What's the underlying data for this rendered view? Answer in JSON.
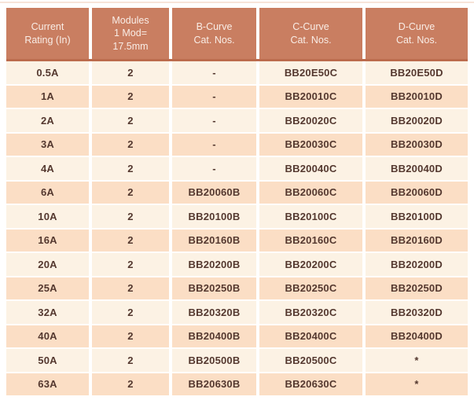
{
  "table": {
    "column_headers": [
      "Current\nRating (In)",
      "Modules\n1 Mod=\n17.5mm",
      "B-Curve\nCat. Nos.",
      "C-Curve\nCat. Nos.",
      "D-Curve\nCat. Nos."
    ],
    "rows": [
      [
        "0.5A",
        "2",
        "-",
        "BB20E50C",
        "BB20E50D"
      ],
      [
        "1A",
        "2",
        "-",
        "BB20010C",
        "BB20010D"
      ],
      [
        "2A",
        "2",
        "-",
        "BB20020C",
        "BB20020D"
      ],
      [
        "3A",
        "2",
        "-",
        "BB20030C",
        "BB20030D"
      ],
      [
        "4A",
        "2",
        "-",
        "BB20040C",
        "BB20040D"
      ],
      [
        "6A",
        "2",
        "BB20060B",
        "BB20060C",
        "BB20060D"
      ],
      [
        "10A",
        "2",
        "BB20100B",
        "BB20100C",
        "BB20100D"
      ],
      [
        "16A",
        "2",
        "BB20160B",
        "BB20160C",
        "BB20160D"
      ],
      [
        "20A",
        "2",
        "BB20200B",
        "BB20200C",
        "BB20200D"
      ],
      [
        "25A",
        "2",
        "BB20250B",
        "BB20250C",
        "BB20250D"
      ],
      [
        "32A",
        "2",
        "BB20320B",
        "BB20320C",
        "BB20320D"
      ],
      [
        "40A",
        "2",
        "BB20400B",
        "BB20400C",
        "BB20400D"
      ],
      [
        "50A",
        "2",
        "BB20500B",
        "BB20500C",
        "*"
      ],
      [
        "63A",
        "2",
        "BB20630B",
        "BB20630C",
        "*"
      ]
    ]
  },
  "colors": {
    "header-bg": "#C97E61",
    "header-border": "#BC6B4D",
    "header-text": "#F9EDE6",
    "row-light": "#FCF2E4",
    "row-peach": "#FBDEC5",
    "body-text": "#54382F",
    "top-rule": "#F7E4D9"
  }
}
